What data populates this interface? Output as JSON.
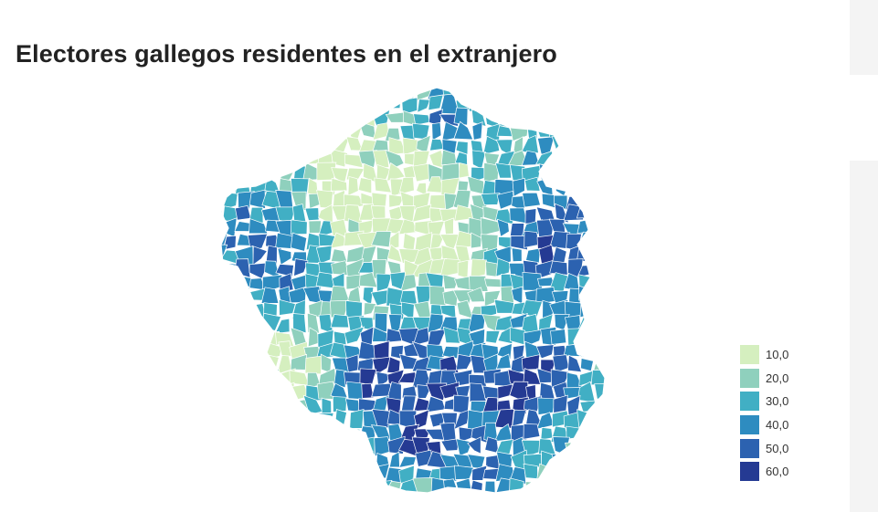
{
  "title": "Electores gallegos residentes en el extranjero",
  "legend": {
    "items": [
      {
        "label": "10,0",
        "color": "#d5efbf"
      },
      {
        "label": "20,0",
        "color": "#8fd0bd"
      },
      {
        "label": "30,0",
        "color": "#41afc4"
      },
      {
        "label": "40,0",
        "color": "#2e8cc0"
      },
      {
        "label": "50,0",
        "color": "#2c62b0"
      },
      {
        "label": "60,0",
        "color": "#253a93"
      }
    ]
  },
  "map": {
    "region": "Galicia",
    "boundary_color": "#ffffff"
  }
}
